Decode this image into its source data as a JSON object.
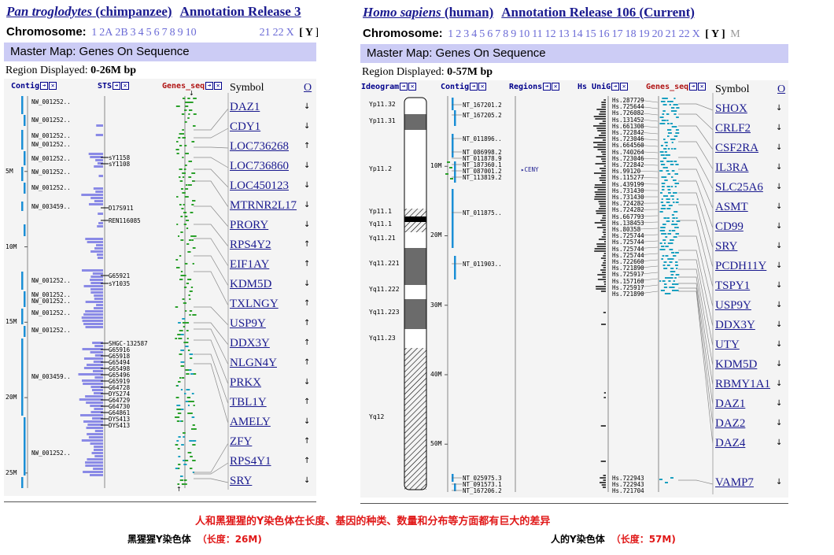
{
  "left": {
    "species": "Pan troglodytes",
    "common": "(chimpanzee)",
    "release": "Annotation Release 3",
    "chromosome_label": "Chromosome:",
    "chromosomes": [
      "1",
      "2A",
      "2B",
      "3",
      "4",
      "5",
      "6",
      "7",
      "8",
      "9",
      "10"
    ],
    "chromosomes_tail": [
      "21",
      "22",
      "X"
    ],
    "current": "[ Y ]",
    "master_map": "Master Map: Genes On Sequence",
    "region_label": "Region Displayed:",
    "region_value": "0-26M bp",
    "tracks": [
      "Contig",
      "STS",
      "Genes_seq"
    ],
    "symbol_header": "Symbol",
    "o_header": "O",
    "axis": [
      "5M",
      "10M",
      "15M",
      "20M",
      "25M"
    ],
    "contigs": [
      "NW_001252..",
      "NW_001252..",
      "NW_001252..",
      "NW_001252..",
      "NW_001252..",
      "NW_001252..",
      "NW_001252..",
      "NW_003459..",
      "NW_001252..",
      "NW_001252..",
      "NW_001252..",
      "NW_001252..",
      "NW_001252..",
      "NW_003459..",
      "NW_001252.."
    ],
    "sts": [
      "sY1158",
      "sY1108",
      "D17S911",
      "REN116085",
      "G65921",
      "sY1035",
      "SHGC-132587",
      "G65916",
      "G65918",
      "G65494",
      "G65498",
      "G65496",
      "G65919",
      "G64728",
      "DYS274",
      "G64729",
      "G64730",
      "G64861",
      "DYS413",
      "DYS413"
    ],
    "genes": [
      {
        "name": "DAZ1",
        "dir": "↓"
      },
      {
        "name": "CDY1",
        "dir": "↓"
      },
      {
        "name": "LOC736268",
        "dir": "↑"
      },
      {
        "name": "LOC736860",
        "dir": "↓"
      },
      {
        "name": "LOC450123",
        "dir": "↓"
      },
      {
        "name": "MTRNR2L17",
        "dir": "↓"
      },
      {
        "name": "PRORY",
        "dir": "↓"
      },
      {
        "name": "RPS4Y2",
        "dir": "↑"
      },
      {
        "name": "EIF1AY",
        "dir": "↑"
      },
      {
        "name": "KDM5D",
        "dir": "↓"
      },
      {
        "name": "TXLNGY",
        "dir": "↑"
      },
      {
        "name": "USP9Y",
        "dir": "↑"
      },
      {
        "name": "DDX3Y",
        "dir": "↑"
      },
      {
        "name": "NLGN4Y",
        "dir": "↑"
      },
      {
        "name": "PRKX",
        "dir": "↓"
      },
      {
        "name": "TBL1Y",
        "dir": "↑"
      },
      {
        "name": "AMELY",
        "dir": "↓"
      },
      {
        "name": "ZFY",
        "dir": "↑"
      },
      {
        "name": "RPS4Y1",
        "dir": "↑"
      },
      {
        "name": "SRY",
        "dir": "↓"
      }
    ],
    "sub_caption": "黑猩猩Y染色体",
    "sub_length": "（长度：26M)"
  },
  "right": {
    "species": "Homo sapiens",
    "common": "(human)",
    "release": "Annotation Release 106 (Current)",
    "chromosome_label": "Chromosome:",
    "chromosomes": [
      "1",
      "2",
      "3",
      "4",
      "5",
      "6",
      "7",
      "8",
      "9",
      "10",
      "11",
      "12",
      "13",
      "14",
      "15",
      "16",
      "17",
      "18",
      "19",
      "20",
      "21",
      "22",
      "X"
    ],
    "current": "[ Y ]",
    "extra": "M",
    "master_map": "Master Map: Genes On Sequence",
    "region_label": "Region Displayed:",
    "region_value": "0-57M bp",
    "tracks": [
      "Ideogram",
      "Contig",
      "Regions",
      "Hs UniG",
      "Genes_seq"
    ],
    "symbol_header": "Symbol",
    "o_header": "O",
    "axis": [
      "10M",
      "20M",
      "30M",
      "40M",
      "50M"
    ],
    "bands": [
      "Yp11.32",
      "Yp11.31",
      "Yp11.2",
      "Yp11.1",
      "Yq11.1",
      "Yq11.21",
      "Yq11.221",
      "Yq11.222",
      "Yq11.223",
      "Yq11.23",
      "Yq12"
    ],
    "contigs_top": [
      "NT_167201.2",
      "NT_167205.2",
      "NT_011896..",
      "NT_086998.2",
      "NT_011878.9",
      "NT_187360.1",
      "NT_087001.2",
      "NT_113819.2",
      "NT_011875..",
      "NT_011903.."
    ],
    "contigs_bottom": [
      "NT_025975.3",
      "NT_091573.1",
      "NT_167206.2"
    ],
    "region_item": "CENY",
    "unigene_top": [
      "Hs.287729",
      "Hs.725644",
      "Hs.726082",
      "Hs.131452",
      "Hs.661308",
      "Hs.722842",
      "Hs.723046",
      "Hs.664560",
      "Hs.740264",
      "Hs.723046",
      "Hs.722842",
      "Hs.99120",
      "Hs.115277",
      "Hs.439199",
      "Hs.731430",
      "Hs.731430",
      "Hs.724282",
      "Hs.724282",
      "Hs.667793",
      "Hs.138453",
      "Hs.80358",
      "Hs.725744",
      "Hs.725744",
      "Hs.725744",
      "Hs.725744",
      "Hs.722660",
      "Hs.721890",
      "Hs.725917",
      "Hs.157160",
      "Hs.725917",
      "Hs.721890"
    ],
    "unigene_bottom": [
      "Hs.722943",
      "Hs.722943",
      "Hs.721704"
    ],
    "genes": [
      {
        "name": "SHOX",
        "dir": "↓"
      },
      {
        "name": "CRLF2",
        "dir": "↓"
      },
      {
        "name": "CSF2RA",
        "dir": "↓"
      },
      {
        "name": "IL3RA",
        "dir": "↓"
      },
      {
        "name": "SLC25A6",
        "dir": "↓"
      },
      {
        "name": "ASMT",
        "dir": "↓"
      },
      {
        "name": "CD99",
        "dir": "↓"
      },
      {
        "name": "SRY",
        "dir": "↓"
      },
      {
        "name": "PCDH11Y",
        "dir": "↓"
      },
      {
        "name": "TSPY1",
        "dir": "↓"
      },
      {
        "name": "USP9Y",
        "dir": "↓"
      },
      {
        "name": "DDX3Y",
        "dir": "↓"
      },
      {
        "name": "UTY",
        "dir": "↓"
      },
      {
        "name": "KDM5D",
        "dir": "↓"
      },
      {
        "name": "RBMY1A1",
        "dir": "↓"
      },
      {
        "name": "DAZ1",
        "dir": "↓"
      },
      {
        "name": "DAZ2",
        "dir": "↓"
      },
      {
        "name": "DAZ4",
        "dir": "↓"
      },
      {
        "name": "VAMP7",
        "dir": "↓"
      }
    ],
    "sub_caption": "人的Y染色体",
    "sub_length": "（长度：57M)"
  },
  "caption": "人和黑猩猩的Y染色体在长度、基因的种类、数量和分布等方面都有巨大的差异",
  "colors": {
    "link": "#1a1a8f",
    "chrom_num": "#6b6bd6",
    "bar": "#ccccf5",
    "caption": "#e01818",
    "contig": "#1b8fd6",
    "sts": "#8a8ae6",
    "gene_green": "#2aa02a",
    "gene_cyan": "#1aa0c0"
  }
}
